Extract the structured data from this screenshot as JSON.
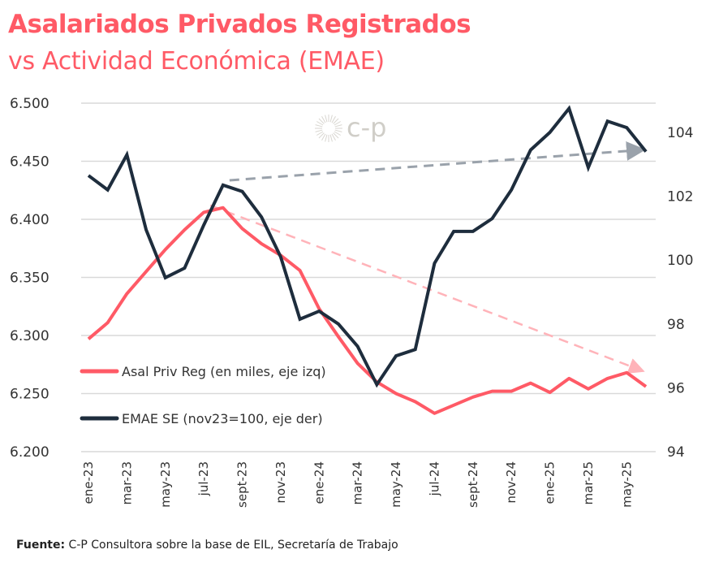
{
  "title": "Asalariados Privados Registrados",
  "subtitle": "vs Actividad Económica (EMAE)",
  "source_label": "Fuente:",
  "source_text": " C-P Consultora sobre la base de EIL, Secretaría de Trabajo",
  "watermark": "c-p",
  "colors": {
    "asal": "#ff5a66",
    "emae": "#1e2d3d",
    "trend_asal": "#ffb3b9",
    "trend_emae": "#9aa2ab",
    "grid": "#d9d9d9"
  },
  "chart_data": {
    "type": "line",
    "title": "Asalariados Privados Registrados vs Actividad Económica (EMAE)",
    "x": [
      "ene-23",
      "feb-23",
      "mar-23",
      "abr-23",
      "may-23",
      "jun-23",
      "jul-23",
      "ago-23",
      "sept-23",
      "oct-23",
      "nov-23",
      "dic-23",
      "ene-24",
      "feb-24",
      "mar-24",
      "abr-24",
      "may-24",
      "jun-24",
      "jul-24",
      "ago-24",
      "sept-24",
      "oct-24",
      "nov-24",
      "dic-24",
      "ene-25",
      "feb-25",
      "mar-25",
      "abr-25",
      "may-25",
      "jun-25"
    ],
    "x_tick_labels": [
      "ene-23",
      "mar-23",
      "may-23",
      "jul-23",
      "sept-23",
      "nov-23",
      "ene-24",
      "mar-24",
      "may-24",
      "jul-24",
      "sept-24",
      "nov-24",
      "ene-25",
      "mar-25",
      "may-25"
    ],
    "y_left": {
      "range": [
        6200,
        6500
      ],
      "ticks": [
        "6.200",
        "6.250",
        "6.300",
        "6.350",
        "6.400",
        "6.450",
        "6.500"
      ],
      "values": [
        6200,
        6250,
        6300,
        6350,
        6400,
        6450,
        6500
      ]
    },
    "y_right": {
      "range": [
        94,
        105
      ],
      "ticks": [
        "94",
        "96",
        "98",
        "100",
        "102",
        "104"
      ],
      "values": [
        94,
        96,
        98,
        100,
        102,
        104
      ]
    },
    "grid": true,
    "legend_position": "bottom-left",
    "series": [
      {
        "name": "Asal Priv Reg (en miles, eje izq)",
        "axis": "left",
        "values": [
          6297,
          6311,
          6336,
          6355,
          6374,
          6391,
          6406,
          6410,
          6392,
          6379,
          6369,
          6356,
          6323,
          6299,
          6276,
          6260,
          6250,
          6243,
          6233,
          6240,
          6247,
          6252,
          6252,
          6259,
          6251,
          6263,
          6254,
          6263,
          6268,
          6256
        ]
      },
      {
        "name": "EMAE SE (nov23=100, eje der)",
        "axis": "right",
        "values": [
          102.65,
          102.2,
          103.3,
          100.95,
          99.45,
          99.75,
          101.1,
          102.35,
          102.15,
          101.35,
          100.1,
          98.15,
          98.4,
          98.0,
          97.3,
          96.1,
          97.0,
          97.2,
          99.9,
          100.9,
          100.9,
          101.3,
          102.2,
          103.45,
          104.0,
          104.75,
          102.9,
          104.35,
          104.15,
          103.4
        ]
      }
    ],
    "annotations": [
      {
        "type": "trend-arrow",
        "series": "EMAE",
        "axis": "right",
        "from": [
          "ago-23",
          102.5
        ],
        "to": [
          "jun-25",
          103.45
        ]
      },
      {
        "type": "trend-arrow",
        "series": "Asal",
        "axis": "left",
        "from": [
          "jul-23",
          6412
        ],
        "to": [
          "jun-25",
          6270
        ]
      }
    ]
  }
}
